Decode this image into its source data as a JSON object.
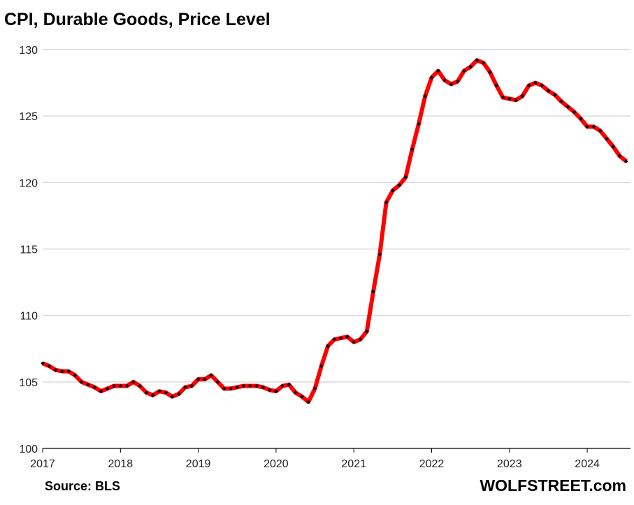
{
  "chart_data": {
    "type": "line",
    "title": "CPI, Durable Goods, Price Level",
    "xlabel": "",
    "ylabel": "",
    "source": "Source: BLS",
    "brand": "WOLFSTREET.com",
    "ylim": [
      100,
      130
    ],
    "yticks": [
      100,
      105,
      110,
      115,
      120,
      125,
      130
    ],
    "xticks": [
      "2017",
      "2018",
      "2019",
      "2020",
      "2021",
      "2022",
      "2023",
      "2024"
    ],
    "x_start": "2017-01",
    "x_frequency": "monthly",
    "grid": true,
    "line_color": "#ff0000",
    "marker_color": "#000000",
    "series": [
      {
        "name": "CPI Durable Goods",
        "values": [
          106.4,
          106.2,
          105.9,
          105.8,
          105.8,
          105.5,
          105.0,
          104.8,
          104.6,
          104.3,
          104.5,
          104.7,
          104.7,
          104.7,
          105.0,
          104.7,
          104.2,
          104.0,
          104.3,
          104.2,
          103.9,
          104.1,
          104.6,
          104.7,
          105.2,
          105.2,
          105.5,
          105.0,
          104.5,
          104.5,
          104.6,
          104.7,
          104.7,
          104.7,
          104.6,
          104.4,
          104.3,
          104.7,
          104.8,
          104.2,
          103.9,
          103.5,
          104.5,
          106.2,
          107.7,
          108.2,
          108.3,
          108.4,
          108.0,
          108.2,
          108.8,
          111.8,
          114.6,
          118.5,
          119.4,
          119.8,
          120.4,
          122.5,
          124.4,
          126.5,
          127.9,
          128.4,
          127.7,
          127.4,
          127.6,
          128.4,
          128.7,
          129.2,
          129.0,
          128.3,
          127.3,
          126.4,
          126.3,
          126.2,
          126.5,
          127.3,
          127.5,
          127.3,
          126.9,
          126.6,
          126.1,
          125.7,
          125.3,
          124.8,
          124.2,
          124.2,
          123.9,
          123.3,
          122.7,
          122.0,
          121.6
        ]
      }
    ]
  }
}
